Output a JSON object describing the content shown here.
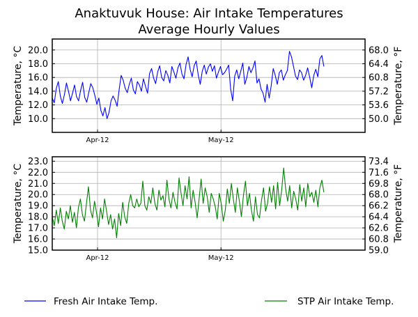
{
  "title": "Anaktuvuk House: Air Intake Temperatures",
  "subtitle": "Average Hourly Values",
  "colors": {
    "fresh": "#0000ff",
    "stp": "#008000",
    "grid": "#b0b0b0"
  },
  "legend": {
    "fresh": "Fresh Air Intake Temp.",
    "stp": "STP Air Intake Temp."
  },
  "chart_data": [
    {
      "type": "line",
      "ylabel": "Temperature, °C",
      "ylabel_right": "Temperature, °F",
      "grid": true,
      "xlim": [
        "2012-03-21",
        "2012-06-05"
      ],
      "ylim": [
        8.0,
        21.6
      ],
      "x_ticks": [
        {
          "value": "2012-04-01",
          "label": "Apr-12"
        },
        {
          "value": "2012-05-01",
          "label": "May-12"
        }
      ],
      "y_ticks": [
        10.0,
        12.0,
        14.0,
        16.0,
        18.0,
        20.0
      ],
      "y_tick_labels": [
        "10.0",
        "12.0",
        "14.0",
        "16.0",
        "18.0",
        "20.0"
      ],
      "y_ticks_right": [
        "50.0",
        "53.6",
        "57.2",
        "60.8",
        "64.4",
        "68.0"
      ],
      "series": [
        {
          "name": "Fresh Air Intake Temp.",
          "color": "#0000ff",
          "x_start": "2012-03-21",
          "x_end": "2012-05-26",
          "values": [
            13.0,
            12.3,
            14.4,
            15.4,
            13.3,
            12.2,
            13.5,
            15.2,
            14.0,
            12.6,
            13.7,
            14.9,
            13.2,
            12.6,
            14.1,
            15.3,
            13.1,
            12.4,
            13.8,
            15.1,
            14.5,
            13.4,
            12.1,
            13.0,
            11.2,
            10.4,
            11.6,
            10.0,
            10.9,
            12.6,
            13.3,
            12.7,
            11.8,
            14.2,
            16.3,
            15.6,
            14.4,
            13.8,
            15.0,
            15.9,
            14.2,
            13.6,
            15.4,
            14.9,
            14.0,
            15.8,
            14.7,
            13.7,
            16.6,
            17.3,
            15.9,
            15.1,
            16.8,
            17.7,
            16.0,
            15.5,
            17.0,
            16.3,
            15.2,
            17.6,
            16.8,
            15.9,
            17.4,
            18.1,
            16.5,
            15.8,
            17.9,
            19.0,
            17.2,
            16.1,
            17.7,
            18.4,
            16.4,
            15.0,
            16.9,
            17.8,
            16.5,
            17.5,
            18.0,
            16.9,
            17.7,
            15.9,
            16.8,
            17.6,
            16.4,
            16.7,
            17.2,
            17.8,
            14.3,
            12.6,
            16.2,
            17.1,
            15.8,
            16.9,
            18.1,
            15.0,
            16.0,
            17.6,
            16.7,
            17.4,
            18.4,
            15.2,
            15.8,
            14.3,
            13.7,
            12.4,
            15.0,
            13.0,
            14.8,
            17.3,
            16.3,
            15.0,
            16.7,
            17.1,
            15.6,
            16.4,
            17.0,
            19.8,
            19.0,
            17.6,
            16.2,
            15.7,
            17.1,
            16.7,
            15.6,
            16.3,
            17.4,
            16.0,
            14.5,
            16.3,
            17.2,
            16.1,
            18.7,
            19.2,
            17.6
          ]
        }
      ]
    },
    {
      "type": "line",
      "ylabel": "Temperature, °C",
      "ylabel_right": "Temperature, °F",
      "grid": true,
      "xlim": [
        "2012-03-21",
        "2012-06-05"
      ],
      "ylim": [
        15.0,
        23.4
      ],
      "x_ticks": [
        {
          "value": "2012-04-01",
          "label": "Apr-12"
        },
        {
          "value": "2012-05-01",
          "label": "May-12"
        }
      ],
      "y_ticks": [
        15.0,
        16.0,
        17.0,
        18.0,
        19.0,
        20.0,
        21.0,
        22.0,
        23.0
      ],
      "y_tick_labels": [
        "15.0",
        "16.0",
        "17.0",
        "18.0",
        "19.0",
        "20.0",
        "21.0",
        "22.0",
        "23.0"
      ],
      "y_ticks_right": [
        "59.0",
        "60.8",
        "62.6",
        "64.4",
        "66.2",
        "68.0",
        "69.8",
        "71.6",
        "73.4"
      ],
      "series": [
        {
          "name": "STP Air Intake Temp.",
          "color": "#008000",
          "x_start": "2012-03-21",
          "x_end": "2012-05-26",
          "values": [
            18.0,
            17.2,
            18.6,
            17.4,
            18.8,
            17.6,
            16.9,
            18.5,
            17.8,
            19.0,
            17.5,
            18.4,
            17.0,
            18.8,
            19.6,
            18.2,
            17.6,
            19.2,
            20.7,
            18.6,
            17.9,
            19.4,
            18.4,
            17.1,
            18.8,
            17.8,
            19.6,
            18.5,
            17.3,
            18.2,
            16.9,
            17.8,
            16.1,
            18.3,
            17.2,
            19.3,
            18.0,
            17.4,
            19.2,
            20.0,
            19.0,
            18.8,
            19.6,
            18.9,
            19.2,
            21.2,
            19.0,
            18.6,
            19.8,
            19.2,
            20.6,
            19.2,
            18.6,
            20.4,
            19.5,
            19.9,
            18.9,
            21.3,
            19.6,
            18.8,
            20.2,
            19.3,
            18.7,
            21.5,
            20.1,
            19.0,
            20.8,
            19.6,
            21.6,
            18.8,
            20.4,
            19.3,
            17.9,
            19.6,
            21.4,
            19.2,
            20.6,
            19.8,
            18.4,
            20.1,
            19.6,
            18.9,
            17.8,
            20.1,
            19.2,
            17.6,
            18.6,
            20.5,
            19.2,
            21.0,
            19.6,
            18.4,
            20.6,
            19.4,
            18.0,
            19.9,
            21.2,
            19.0,
            20.1,
            18.6,
            17.6,
            19.8,
            18.2,
            17.9,
            19.5,
            20.6,
            18.5,
            19.2,
            20.7,
            19.3,
            20.8,
            18.7,
            21.1,
            19.0,
            20.4,
            22.4,
            20.5,
            19.4,
            20.8,
            18.8,
            20.3,
            19.6,
            18.6,
            20.9,
            19.4,
            20.6,
            18.9,
            21.0,
            19.8,
            20.2,
            19.3,
            20.4,
            18.9,
            20.6,
            21.3,
            20.2
          ]
        }
      ]
    }
  ]
}
